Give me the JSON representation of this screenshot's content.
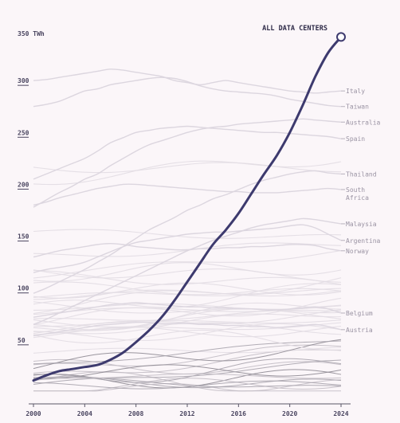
{
  "chart_data": {
    "type": "line",
    "title": "",
    "xlabel": "",
    "ylabel": "",
    "y_unit_label": "350 TWh",
    "xlim": [
      2000,
      2024
    ],
    "ylim": [
      0,
      350
    ],
    "x_ticks": [
      "2000",
      "2004",
      "2008",
      "2012",
      "2016",
      "2020",
      "2024"
    ],
    "y_ticks": [
      "50",
      "100",
      "150",
      "200",
      "250",
      "300"
    ],
    "grid": false,
    "highlight": {
      "name": "ALL DATA CENTERS",
      "color": "#3d3a6e",
      "x": [
        2000,
        2001,
        2002,
        2003,
        2004,
        2005,
        2006,
        2007,
        2008,
        2009,
        2010,
        2011,
        2012,
        2013,
        2014,
        2015,
        2016,
        2017,
        2018,
        2019,
        2020,
        2021,
        2022,
        2023,
        2024
      ],
      "values": [
        11,
        16,
        20,
        22,
        24,
        26,
        31,
        38,
        48,
        59,
        72,
        88,
        106,
        124,
        142,
        156,
        172,
        191,
        210,
        228,
        250,
        276,
        304,
        327,
        342
      ]
    },
    "series": [
      {
        "name": "Italy",
        "values": [
          300,
          301,
          303,
          305,
          307,
          309,
          311,
          310,
          308,
          306,
          304,
          300,
          298,
          296,
          298,
          300,
          298,
          296,
          294,
          292,
          290,
          289,
          288,
          289,
          290
        ]
      },
      {
        "name": "Taiwan",
        "values": [
          275,
          277,
          280,
          285,
          290,
          292,
          296,
          298,
          300,
          302,
          303,
          302,
          299,
          295,
          292,
          290,
          289,
          288,
          287,
          285,
          282,
          280,
          278,
          276,
          275
        ]
      },
      {
        "name": "Australia",
        "values": [
          178,
          185,
          192,
          198,
          205,
          210,
          218,
          225,
          232,
          238,
          242,
          246,
          250,
          253,
          255,
          256,
          258,
          259,
          260,
          261,
          262,
          263,
          262,
          261,
          260
        ]
      },
      {
        "name": "Spain",
        "values": [
          205,
          210,
          215,
          220,
          225,
          232,
          240,
          245,
          250,
          252,
          254,
          255,
          256,
          255,
          254,
          253,
          252,
          251,
          250,
          250,
          249,
          248,
          247,
          246,
          244
        ]
      },
      {
        "name": "Thailand",
        "values": [
          95,
          100,
          106,
          112,
          118,
          125,
          132,
          140,
          148,
          156,
          162,
          168,
          175,
          180,
          186,
          190,
          195,
          200,
          204,
          207,
          210,
          212,
          213,
          211,
          210
        ]
      },
      {
        "name": "South Africa",
        "values": [
          180,
          183,
          187,
          190,
          193,
          196,
          198,
          200,
          200,
          199,
          198,
          197,
          196,
          195,
          194,
          193,
          193,
          192,
          192,
          192,
          193,
          194,
          195,
          196,
          195
        ]
      },
      {
        "name": "Malaysia",
        "values": [
          65,
          70,
          76,
          82,
          88,
          94,
          100,
          106,
          112,
          118,
          124,
          130,
          136,
          141,
          146,
          150,
          154,
          158,
          161,
          163,
          165,
          167,
          166,
          164,
          162
        ]
      },
      {
        "name": "Argentina",
        "values": [
          115,
          118,
          120,
          122,
          125,
          130,
          135,
          140,
          144,
          146,
          148,
          150,
          152,
          153,
          154,
          154,
          155,
          156,
          157,
          158,
          160,
          161,
          158,
          152,
          146
        ]
      },
      {
        "name": "Norway",
        "values": [
          130,
          133,
          136,
          138,
          140,
          142,
          143,
          142,
          140,
          139,
          138,
          137,
          137,
          138,
          138,
          139,
          139,
          140,
          140,
          141,
          142,
          142,
          141,
          138,
          136
        ]
      },
      {
        "name": "Belgium",
        "values": [
          72,
          74,
          76,
          78,
          80,
          82,
          84,
          85,
          86,
          85,
          84,
          83,
          82,
          82,
          81,
          81,
          80,
          80,
          79,
          79,
          80,
          81,
          82,
          80,
          76
        ]
      },
      {
        "name": "Austria",
        "values": [
          54,
          56,
          58,
          60,
          62,
          64,
          65,
          66,
          67,
          67,
          66,
          66,
          66,
          65,
          65,
          64,
          64,
          63,
          63,
          62,
          63,
          64,
          65,
          63,
          60
        ]
      }
    ]
  }
}
